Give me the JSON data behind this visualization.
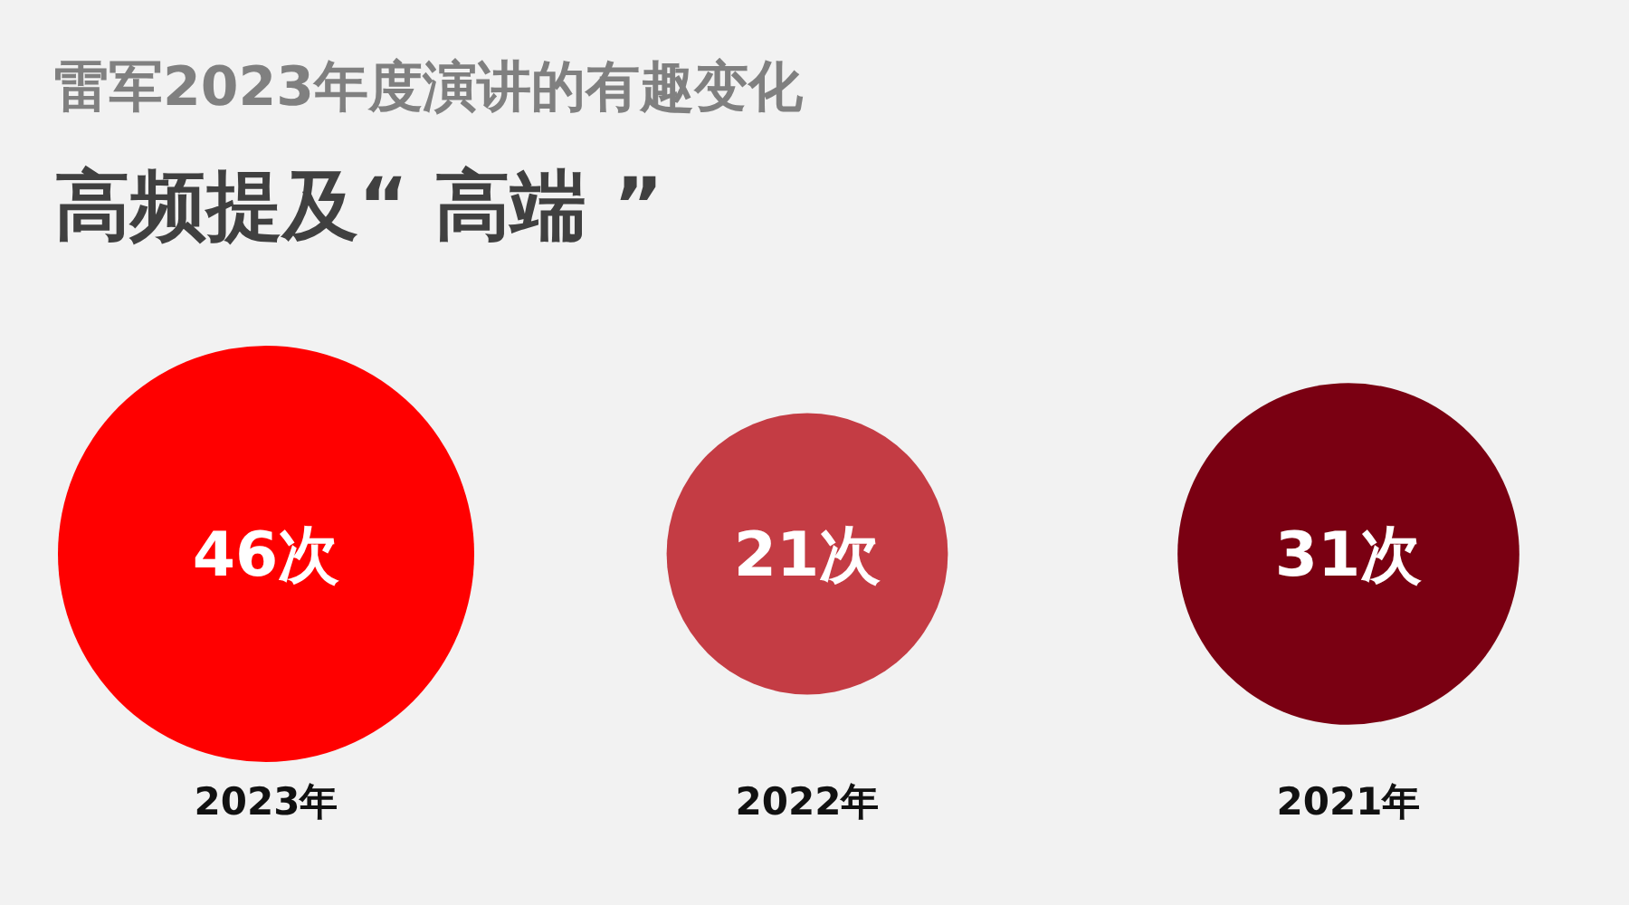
{
  "chart_data": {
    "type": "other",
    "title": "雷军2023年度演讲的有趣变化",
    "subtitle": "高频提及“ 高端 ”",
    "categories": [
      "2023年",
      "2022年",
      "2021年"
    ],
    "values": [
      46,
      21,
      31
    ],
    "colors": [
      "#ff0000",
      "#c43c44",
      "#7a0012"
    ],
    "value_labels": [
      "46次",
      "21次",
      "31次"
    ]
  }
}
